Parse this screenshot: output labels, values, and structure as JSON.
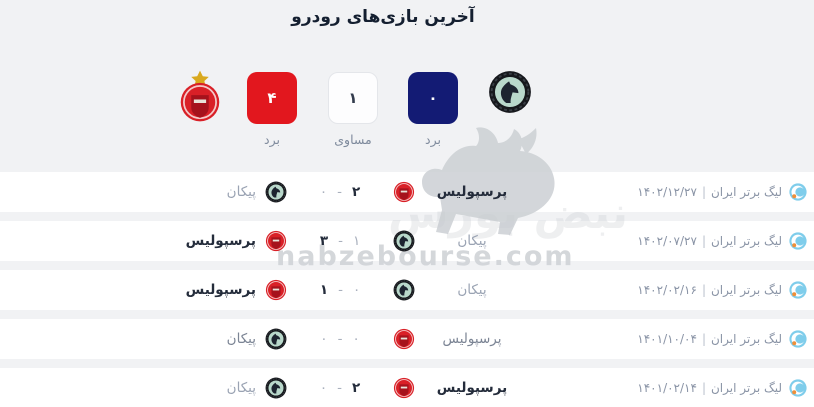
{
  "title": "آخرین بازی‌های رودرو",
  "summary": {
    "right_team": "paykan",
    "left_team": "persepolis",
    "paykan_wins": "۰",
    "draws": "۱",
    "persepolis_wins": "۴",
    "win_label": "برد",
    "draw_label": "مساوی",
    "colors": {
      "persepolis_box": "#e2171e",
      "paykan_box": "#131b74",
      "draw_box": "#fdfdfe"
    }
  },
  "league": {
    "name": "لیگ برتر ایران",
    "separator": "|"
  },
  "matches": [
    {
      "date": "۱۴۰۲/۱۲/۲۷",
      "home": {
        "name": "پرسپولیس",
        "team": "persepolis",
        "score": "۲",
        "result": "win"
      },
      "away": {
        "name": "پیکان",
        "team": "paykan",
        "score": "۰",
        "result": "loss"
      }
    },
    {
      "date": "۱۴۰۲/۰۷/۲۷",
      "home": {
        "name": "پیکان",
        "team": "paykan",
        "score": "۱",
        "result": "loss"
      },
      "away": {
        "name": "پرسپولیس",
        "team": "persepolis",
        "score": "۳",
        "result": "win"
      }
    },
    {
      "date": "۱۴۰۲/۰۲/۱۶",
      "home": {
        "name": "پیکان",
        "team": "paykan",
        "score": "۰",
        "result": "loss"
      },
      "away": {
        "name": "پرسپولیس",
        "team": "persepolis",
        "score": "۱",
        "result": "win"
      }
    },
    {
      "date": "۱۴۰۱/۱۰/۰۴",
      "home": {
        "name": "پرسپولیس",
        "team": "persepolis",
        "score": "۰",
        "result": "draw"
      },
      "away": {
        "name": "پیکان",
        "team": "paykan",
        "score": "۰",
        "result": "draw"
      }
    },
    {
      "date": "۱۴۰۱/۰۲/۱۴",
      "home": {
        "name": "پرسپولیس",
        "team": "persepolis",
        "score": "۲",
        "result": "win"
      },
      "away": {
        "name": "پیکان",
        "team": "paykan",
        "score": "۰",
        "result": "loss"
      }
    }
  ],
  "watermark": {
    "latin": "nabzebourse.com",
    "farsi": "نبض بورس"
  }
}
